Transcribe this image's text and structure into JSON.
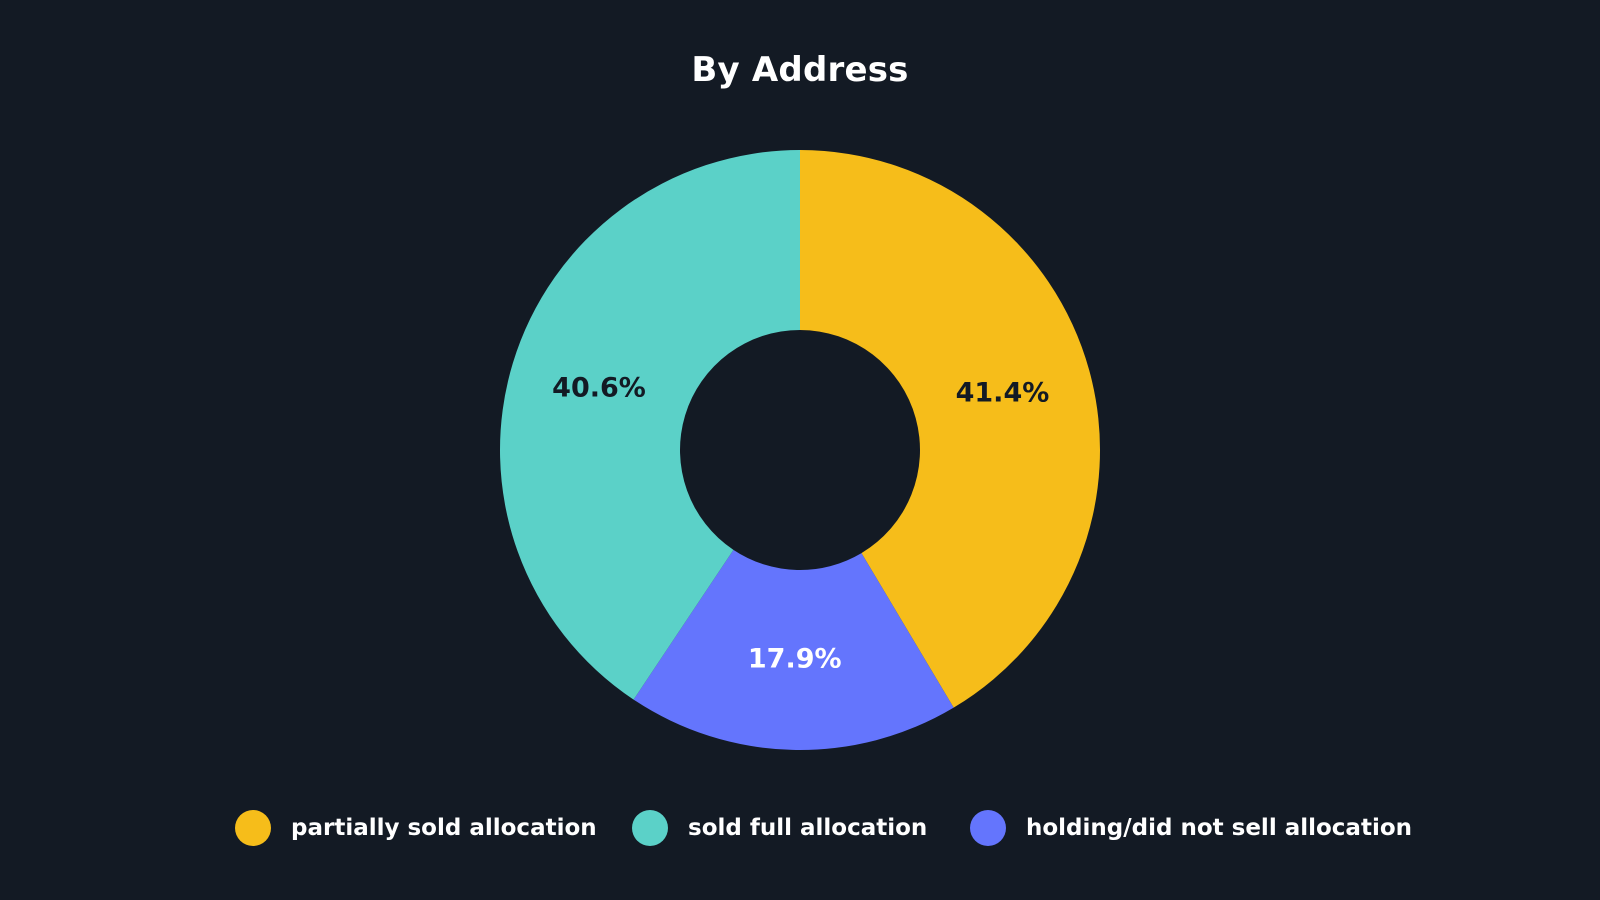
{
  "chart_data": {
    "type": "pie",
    "variant": "donut",
    "title": "By Address",
    "slices": [
      {
        "label": "partially sold allocation",
        "value": 41.4,
        "value_label": "41.4%",
        "color": "#f6bd1a",
        "label_color": "#131a24"
      },
      {
        "label": "holding/did not sell allocation",
        "value": 17.9,
        "value_label": "17.9%",
        "color": "#6475fd",
        "label_color": "#ffffff"
      },
      {
        "label": "sold full allocation",
        "value": 40.6,
        "value_label": "40.6%",
        "color": "#5bd1c8",
        "label_color": "#131a24"
      }
    ],
    "legend": {
      "placement": "bottom",
      "items": [
        {
          "label": "partially sold allocation",
          "color": "#f6bd1a"
        },
        {
          "label": "sold full allocation",
          "color": "#5bd1c8"
        },
        {
          "label": "holding/did not sell allocation",
          "color": "#6475fd"
        }
      ]
    }
  },
  "background_color": "#131a24"
}
